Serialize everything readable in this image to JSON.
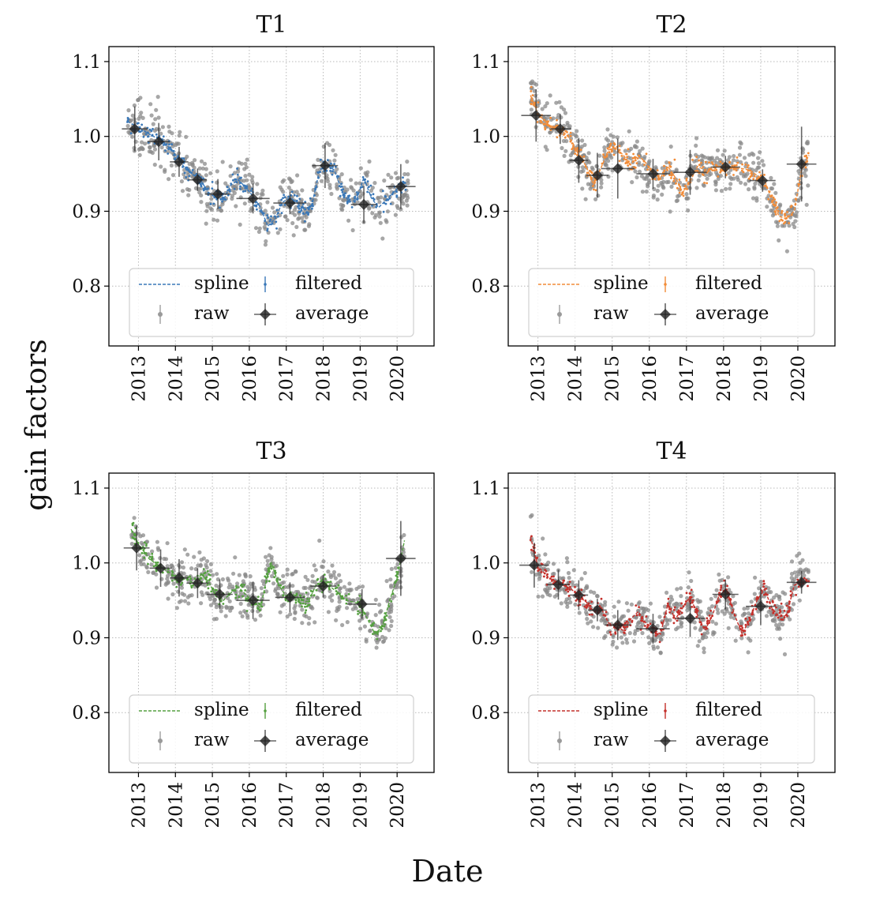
{
  "figure": {
    "ylabel": "gain factors",
    "xlabel": "Date"
  },
  "chart_data": [
    {
      "type": "scatter",
      "title": "T1",
      "color": "#3a78b8",
      "ylim": [
        0.72,
        1.12
      ],
      "yticks": [
        0.8,
        0.9,
        1.0,
        1.1
      ],
      "ytick_labels": [
        "0.8",
        "0.9",
        "1.0",
        "1.1"
      ],
      "xlim": [
        2012.2,
        2021.0
      ],
      "xticks": [
        2013,
        2014,
        2015,
        2016,
        2017,
        2018,
        2019,
        2020
      ],
      "xtick_labels": [
        "2013",
        "2014",
        "2015",
        "2016",
        "2017",
        "2018",
        "2019",
        "2020"
      ],
      "grid": true,
      "legend": {
        "position": "lower-center",
        "entries": [
          "spline",
          "filtered",
          "raw",
          "average"
        ]
      },
      "average": [
        {
          "x": 2012.9,
          "y": 1.01,
          "xerr": 0.35,
          "yerr": 0.03
        },
        {
          "x": 2013.55,
          "y": 0.993,
          "xerr": 0.3,
          "yerr": 0.025
        },
        {
          "x": 2014.1,
          "y": 0.966,
          "xerr": 0.25,
          "yerr": 0.02
        },
        {
          "x": 2014.6,
          "y": 0.942,
          "xerr": 0.25,
          "yerr": 0.015
        },
        {
          "x": 2015.15,
          "y": 0.923,
          "xerr": 0.35,
          "yerr": 0.02
        },
        {
          "x": 2016.1,
          "y": 0.917,
          "xerr": 0.45,
          "yerr": 0.02
        },
        {
          "x": 2017.1,
          "y": 0.911,
          "xerr": 0.45,
          "yerr": 0.015
        },
        {
          "x": 2018.05,
          "y": 0.961,
          "xerr": 0.35,
          "yerr": 0.03
        },
        {
          "x": 2019.1,
          "y": 0.909,
          "xerr": 0.35,
          "yerr": 0.025
        },
        {
          "x": 2020.1,
          "y": 0.933,
          "xerr": 0.4,
          "yerr": 0.03
        }
      ],
      "spline": [
        [
          2012.7,
          1.02
        ],
        [
          2013.0,
          1.012
        ],
        [
          2013.3,
          1.003
        ],
        [
          2013.6,
          0.995
        ],
        [
          2013.9,
          0.982
        ],
        [
          2014.1,
          0.968
        ],
        [
          2014.3,
          0.955
        ],
        [
          2014.5,
          0.948
        ],
        [
          2014.7,
          0.94
        ],
        [
          2014.9,
          0.925
        ],
        [
          2015.1,
          0.918
        ],
        [
          2015.3,
          0.915
        ],
        [
          2015.5,
          0.935
        ],
        [
          2015.7,
          0.942
        ],
        [
          2015.9,
          0.932
        ],
        [
          2016.1,
          0.92
        ],
        [
          2016.3,
          0.905
        ],
        [
          2016.5,
          0.88
        ],
        [
          2016.7,
          0.89
        ],
        [
          2016.9,
          0.912
        ],
        [
          2017.1,
          0.918
        ],
        [
          2017.3,
          0.912
        ],
        [
          2017.5,
          0.895
        ],
        [
          2017.7,
          0.91
        ],
        [
          2017.9,
          0.955
        ],
        [
          2018.1,
          0.962
        ],
        [
          2018.3,
          0.955
        ],
        [
          2018.5,
          0.928
        ],
        [
          2018.7,
          0.912
        ],
        [
          2018.9,
          0.915
        ],
        [
          2019.1,
          0.945
        ],
        [
          2019.3,
          0.918
        ],
        [
          2019.5,
          0.905
        ],
        [
          2019.8,
          0.92
        ],
        [
          2020.0,
          0.93
        ],
        [
          2020.3,
          0.935
        ]
      ]
    },
    {
      "type": "scatter",
      "title": "T2",
      "color": "#f28c38",
      "ylim": [
        0.72,
        1.12
      ],
      "yticks": [
        0.8,
        0.9,
        1.0,
        1.1
      ],
      "ytick_labels": [
        "0.8",
        "0.9",
        "1.0",
        "1.1"
      ],
      "xlim": [
        2012.2,
        2021.0
      ],
      "xticks": [
        2013,
        2014,
        2015,
        2016,
        2017,
        2018,
        2019,
        2020
      ],
      "xtick_labels": [
        "2013",
        "2014",
        "2015",
        "2016",
        "2017",
        "2018",
        "2019",
        "2020"
      ],
      "grid": true,
      "legend": {
        "position": "lower-center",
        "entries": [
          "spline",
          "filtered",
          "raw",
          "average"
        ]
      },
      "average": [
        {
          "x": 2012.95,
          "y": 1.028,
          "xerr": 0.4,
          "yerr": 0.035
        },
        {
          "x": 2013.6,
          "y": 1.01,
          "xerr": 0.3,
          "yerr": 0.02
        },
        {
          "x": 2014.1,
          "y": 0.968,
          "xerr": 0.25,
          "yerr": 0.03
        },
        {
          "x": 2014.6,
          "y": 0.948,
          "xerr": 0.3,
          "yerr": 0.03
        },
        {
          "x": 2015.15,
          "y": 0.957,
          "xerr": 0.45,
          "yerr": 0.04
        },
        {
          "x": 2016.1,
          "y": 0.95,
          "xerr": 0.45,
          "yerr": 0.02
        },
        {
          "x": 2017.1,
          "y": 0.952,
          "xerr": 0.45,
          "yerr": 0.03
        },
        {
          "x": 2018.05,
          "y": 0.959,
          "xerr": 0.4,
          "yerr": 0.015
        },
        {
          "x": 2019.05,
          "y": 0.941,
          "xerr": 0.35,
          "yerr": 0.015
        },
        {
          "x": 2020.1,
          "y": 0.963,
          "xerr": 0.4,
          "yerr": 0.05
        }
      ],
      "spline": [
        [
          2012.8,
          1.055
        ],
        [
          2013.0,
          1.03
        ],
        [
          2013.3,
          1.015
        ],
        [
          2013.6,
          1.01
        ],
        [
          2013.9,
          0.995
        ],
        [
          2014.1,
          0.975
        ],
        [
          2014.3,
          0.96
        ],
        [
          2014.5,
          0.935
        ],
        [
          2014.7,
          0.958
        ],
        [
          2014.9,
          0.982
        ],
        [
          2015.1,
          0.985
        ],
        [
          2015.3,
          0.975
        ],
        [
          2015.5,
          0.962
        ],
        [
          2015.7,
          0.975
        ],
        [
          2015.9,
          0.965
        ],
        [
          2016.1,
          0.95
        ],
        [
          2016.3,
          0.945
        ],
        [
          2016.5,
          0.96
        ],
        [
          2016.7,
          0.945
        ],
        [
          2016.9,
          0.925
        ],
        [
          2017.1,
          0.94
        ],
        [
          2017.3,
          0.96
        ],
        [
          2017.5,
          0.955
        ],
        [
          2017.7,
          0.958
        ],
        [
          2017.9,
          0.96
        ],
        [
          2018.1,
          0.958
        ],
        [
          2018.3,
          0.958
        ],
        [
          2018.5,
          0.957
        ],
        [
          2018.7,
          0.955
        ],
        [
          2018.9,
          0.948
        ],
        [
          2019.1,
          0.942
        ],
        [
          2019.3,
          0.915
        ],
        [
          2019.5,
          0.893
        ],
        [
          2019.7,
          0.89
        ],
        [
          2019.9,
          0.9
        ],
        [
          2020.1,
          0.955
        ],
        [
          2020.3,
          0.975
        ]
      ]
    },
    {
      "type": "scatter",
      "title": "T3",
      "color": "#55a040",
      "ylim": [
        0.72,
        1.12
      ],
      "yticks": [
        0.8,
        0.9,
        1.0,
        1.1
      ],
      "ytick_labels": [
        "0.8",
        "0.9",
        "1.0",
        "1.1"
      ],
      "xlim": [
        2012.2,
        2021.0
      ],
      "xticks": [
        2013,
        2014,
        2015,
        2016,
        2017,
        2018,
        2019,
        2020
      ],
      "xtick_labels": [
        "2013",
        "2014",
        "2015",
        "2016",
        "2017",
        "2018",
        "2019",
        "2020"
      ],
      "grid": true,
      "legend": {
        "position": "lower-center",
        "entries": [
          "spline",
          "filtered",
          "raw",
          "average"
        ]
      },
      "average": [
        {
          "x": 2012.95,
          "y": 1.02,
          "xerr": 0.35,
          "yerr": 0.03
        },
        {
          "x": 2013.6,
          "y": 0.993,
          "xerr": 0.3,
          "yerr": 0.025
        },
        {
          "x": 2014.1,
          "y": 0.98,
          "xerr": 0.25,
          "yerr": 0.025
        },
        {
          "x": 2014.6,
          "y": 0.973,
          "xerr": 0.3,
          "yerr": 0.02
        },
        {
          "x": 2015.2,
          "y": 0.958,
          "xerr": 0.35,
          "yerr": 0.02
        },
        {
          "x": 2016.1,
          "y": 0.95,
          "xerr": 0.45,
          "yerr": 0.025
        },
        {
          "x": 2017.1,
          "y": 0.954,
          "xerr": 0.4,
          "yerr": 0.02
        },
        {
          "x": 2018.0,
          "y": 0.969,
          "xerr": 0.35,
          "yerr": 0.015
        },
        {
          "x": 2019.05,
          "y": 0.945,
          "xerr": 0.4,
          "yerr": 0.02
        },
        {
          "x": 2020.1,
          "y": 1.006,
          "xerr": 0.4,
          "yerr": 0.05
        }
      ],
      "spline": [
        [
          2012.8,
          1.045
        ],
        [
          2013.0,
          1.025
        ],
        [
          2013.3,
          1.005
        ],
        [
          2013.6,
          0.995
        ],
        [
          2013.9,
          0.985
        ],
        [
          2014.1,
          0.975
        ],
        [
          2014.3,
          0.98
        ],
        [
          2014.5,
          0.972
        ],
        [
          2014.7,
          0.985
        ],
        [
          2014.9,
          0.975
        ],
        [
          2015.1,
          0.955
        ],
        [
          2015.3,
          0.95
        ],
        [
          2015.5,
          0.96
        ],
        [
          2015.7,
          0.968
        ],
        [
          2015.9,
          0.958
        ],
        [
          2016.1,
          0.948
        ],
        [
          2016.3,
          0.94
        ],
        [
          2016.5,
          0.985
        ],
        [
          2016.6,
          1.0
        ],
        [
          2016.8,
          0.97
        ],
        [
          2017.0,
          0.955
        ],
        [
          2017.2,
          0.958
        ],
        [
          2017.4,
          0.95
        ],
        [
          2017.6,
          0.948
        ],
        [
          2017.8,
          0.97
        ],
        [
          2018.0,
          0.972
        ],
        [
          2018.2,
          0.968
        ],
        [
          2018.4,
          0.96
        ],
        [
          2018.6,
          0.95
        ],
        [
          2018.8,
          0.948
        ],
        [
          2019.0,
          0.945
        ],
        [
          2019.2,
          0.925
        ],
        [
          2019.4,
          0.905
        ],
        [
          2019.6,
          0.915
        ],
        [
          2019.8,
          0.95
        ],
        [
          2020.0,
          0.98
        ],
        [
          2020.2,
          1.03
        ]
      ]
    },
    {
      "type": "scatter",
      "title": "T4",
      "color": "#c4302b",
      "ylim": [
        0.72,
        1.12
      ],
      "yticks": [
        0.8,
        0.9,
        1.0,
        1.1
      ],
      "ytick_labels": [
        "0.8",
        "0.9",
        "1.0",
        "1.1"
      ],
      "xlim": [
        2012.2,
        2021.0
      ],
      "xticks": [
        2013,
        2014,
        2015,
        2016,
        2017,
        2018,
        2019,
        2020
      ],
      "xtick_labels": [
        "2013",
        "2014",
        "2015",
        "2016",
        "2017",
        "2018",
        "2019",
        "2020"
      ],
      "grid": true,
      "legend": {
        "position": "lower-center",
        "entries": [
          "spline",
          "filtered",
          "raw",
          "average"
        ]
      },
      "average": [
        {
          "x": 2012.9,
          "y": 0.997,
          "xerr": 0.4,
          "yerr": 0.03
        },
        {
          "x": 2013.55,
          "y": 0.971,
          "xerr": 0.3,
          "yerr": 0.02
        },
        {
          "x": 2014.1,
          "y": 0.957,
          "xerr": 0.25,
          "yerr": 0.02
        },
        {
          "x": 2014.6,
          "y": 0.937,
          "xerr": 0.25,
          "yerr": 0.015
        },
        {
          "x": 2015.15,
          "y": 0.917,
          "xerr": 0.35,
          "yerr": 0.02
        },
        {
          "x": 2016.1,
          "y": 0.912,
          "xerr": 0.45,
          "yerr": 0.02
        },
        {
          "x": 2017.1,
          "y": 0.926,
          "xerr": 0.4,
          "yerr": 0.025
        },
        {
          "x": 2018.05,
          "y": 0.958,
          "xerr": 0.35,
          "yerr": 0.02
        },
        {
          "x": 2019.0,
          "y": 0.942,
          "xerr": 0.4,
          "yerr": 0.025
        },
        {
          "x": 2020.1,
          "y": 0.974,
          "xerr": 0.4,
          "yerr": 0.015
        }
      ],
      "spline": [
        [
          2012.8,
          1.035
        ],
        [
          2013.0,
          0.995
        ],
        [
          2013.3,
          0.98
        ],
        [
          2013.6,
          0.972
        ],
        [
          2013.9,
          0.965
        ],
        [
          2014.1,
          0.955
        ],
        [
          2014.3,
          0.948
        ],
        [
          2014.5,
          0.935
        ],
        [
          2014.7,
          0.94
        ],
        [
          2014.9,
          0.92
        ],
        [
          2015.1,
          0.915
        ],
        [
          2015.3,
          0.91
        ],
        [
          2015.5,
          0.925
        ],
        [
          2015.7,
          0.935
        ],
        [
          2015.9,
          0.92
        ],
        [
          2016.1,
          0.912
        ],
        [
          2016.3,
          0.905
        ],
        [
          2016.5,
          0.945
        ],
        [
          2016.7,
          0.925
        ],
        [
          2016.9,
          0.94
        ],
        [
          2017.1,
          0.955
        ],
        [
          2017.3,
          0.93
        ],
        [
          2017.5,
          0.91
        ],
        [
          2017.7,
          0.93
        ],
        [
          2017.9,
          0.96
        ],
        [
          2018.1,
          0.962
        ],
        [
          2018.3,
          0.93
        ],
        [
          2018.5,
          0.905
        ],
        [
          2018.7,
          0.925
        ],
        [
          2018.9,
          0.95
        ],
        [
          2019.1,
          0.965
        ],
        [
          2019.3,
          0.94
        ],
        [
          2019.5,
          0.928
        ],
        [
          2019.7,
          0.93
        ],
        [
          2019.9,
          0.97
        ],
        [
          2020.1,
          0.975
        ],
        [
          2020.3,
          0.975
        ]
      ]
    }
  ]
}
